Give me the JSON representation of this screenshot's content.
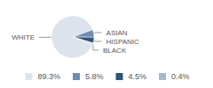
{
  "chart_data": {
    "type": "pie",
    "categories": [
      "WHITE",
      "ASIAN",
      "HISPANIC",
      "BLACK"
    ],
    "values": [
      89.3,
      5.8,
      4.5,
      0.4
    ],
    "value_labels": [
      "89.3%",
      "5.8%",
      "4.5%",
      "0.4%"
    ],
    "colors": [
      "#dde3ec",
      "#6e8db0",
      "#2f5577",
      "#a8b9cc"
    ],
    "legend": "bottom"
  }
}
